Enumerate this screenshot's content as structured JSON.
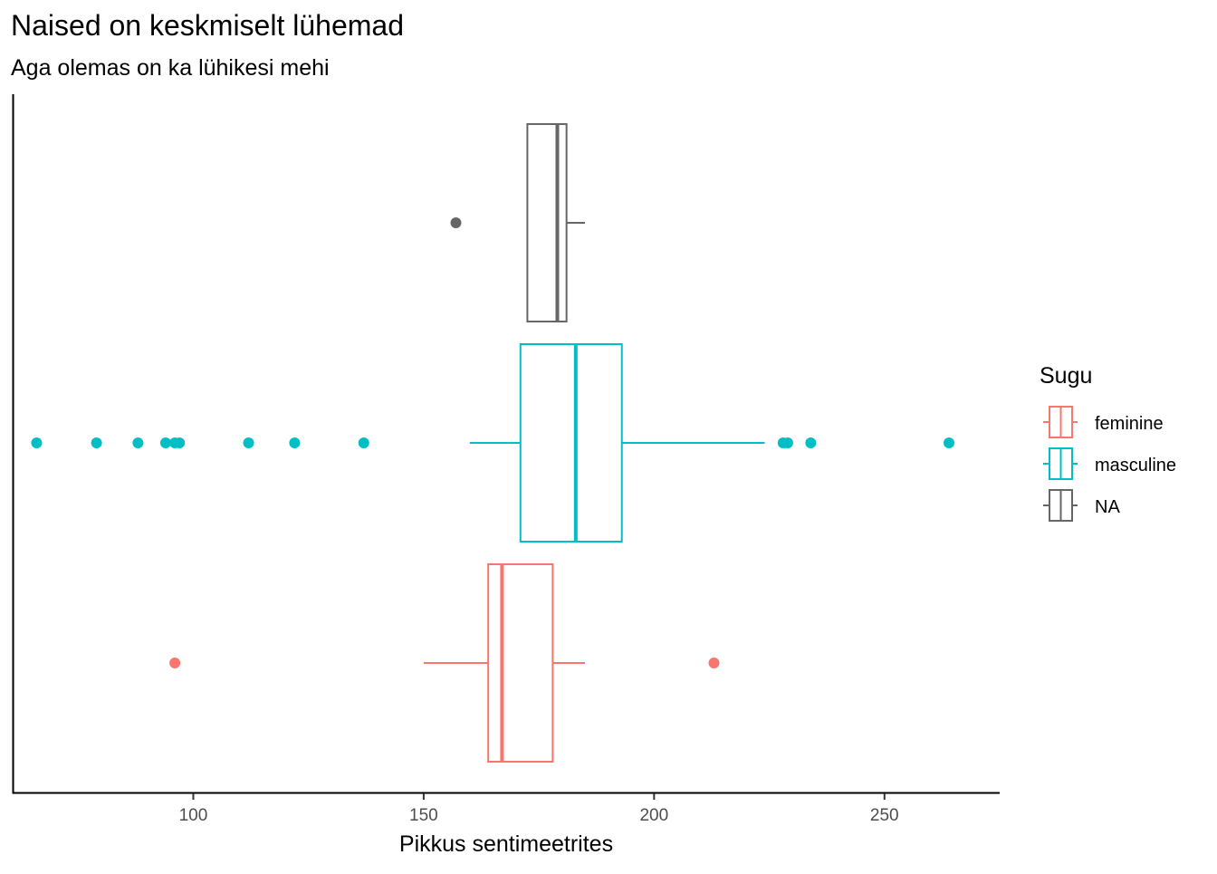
{
  "chart_data": {
    "type": "boxplot",
    "orientation": "horizontal",
    "title": "Naised on keskmiselt lühemad",
    "subtitle": "Aga olemas on ka lühikesi mehi",
    "xlabel": "Pikkus sentimeetrites",
    "ylabel": "",
    "xlim": [
      61,
      275
    ],
    "xticks": [
      100,
      150,
      200,
      250
    ],
    "grid": false,
    "legend": {
      "title": "Sugu",
      "position": "right"
    },
    "series": [
      {
        "name": "feminine",
        "color": "#F8766D",
        "whisker_low": 150,
        "q1": 164,
        "median": 167,
        "q3": 178,
        "whisker_high": 185,
        "outliers": [
          96,
          213
        ]
      },
      {
        "name": "masculine",
        "color": "#00BFC4",
        "whisker_low": 160,
        "q1": 171,
        "median": 183,
        "q3": 193,
        "whisker_high": 224,
        "outliers": [
          66,
          79,
          88,
          94,
          96,
          97,
          112,
          122,
          137,
          228,
          229,
          234,
          264
        ]
      },
      {
        "name": "NA",
        "color": "#666666",
        "whisker_low": 172.5,
        "q1": 172.5,
        "median": 179,
        "q3": 181,
        "whisker_high": 185,
        "outliers": [
          157
        ]
      }
    ]
  }
}
